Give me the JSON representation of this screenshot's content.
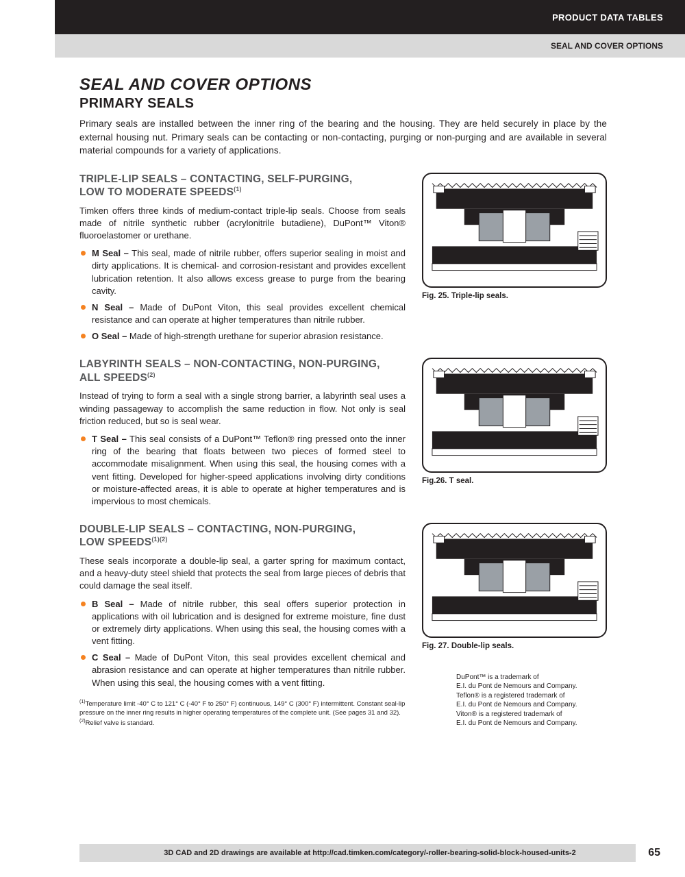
{
  "header": {
    "black": "PRODUCT DATA TABLES",
    "grey": "SEAL AND COVER OPTIONS"
  },
  "title": "SEAL AND COVER OPTIONS",
  "subtitle": "PRIMARY SEALS",
  "intro": "Primary seals are installed between the inner ring of the bearing and the housing. They are held securely in place by the external housing nut. Primary seals can be contacting or non-contacting, purging or non-purging and are available in several material compounds for a variety of applications.",
  "sections": [
    {
      "heading_l1": "TRIPLE-LIP SEALS – CONTACTING, SELF-PURGING,",
      "heading_l2": "LOW TO MODERATE SPEEDS",
      "heading_sup": "(1)",
      "body": "Timken offers three kinds of medium-contact triple-lip seals. Choose from seals made of nitrile synthetic rubber (acrylonitrile butadiene), DuPont™ Viton® fluoroelastomer or urethane.",
      "bullets": [
        {
          "b": "M Seal –",
          "t": " This seal, made of nitrile rubber, offers superior sealing in moist and dirty applications. It is chemical- and corrosion-resistant and provides excellent lubrication retention. It also allows excess grease to purge from the bearing cavity."
        },
        {
          "b": "N Seal –",
          "t": " Made of DuPont Viton, this seal provides excellent chemical resistance and can operate at higher temperatures than nitrile rubber."
        },
        {
          "b": "O Seal –",
          "t": " Made of high-strength urethane for superior abrasion resistance."
        }
      ],
      "fig_caption": "Fig. 25. Triple-lip seals."
    },
    {
      "heading_l1": "LABYRINTH SEALS – NON-CONTACTING, NON-PURGING,",
      "heading_l2": "ALL SPEEDS",
      "heading_sup": "(2)",
      "body": "Instead of trying to form a seal with a single strong barrier, a labyrinth seal uses a winding passageway to accomplish the same reduction in flow. Not only is seal friction reduced, but so is seal wear.",
      "bullets": [
        {
          "b": "T Seal –",
          "t": " This seal consists of a DuPont™ Teflon® ring pressed onto the inner ring of the bearing that floats between two pieces of formed steel to accommodate misalignment. When using this seal, the housing comes with a vent fitting. Developed for higher-speed applications involving dirty conditions or moisture-affected areas, it is able to operate at higher temperatures and is impervious to most chemicals."
        }
      ],
      "fig_caption": "Fig.26. T seal."
    },
    {
      "heading_l1": "DOUBLE-LIP SEALS – CONTACTING, NON-PURGING,",
      "heading_l2": "LOW SPEEDS",
      "heading_sup": "(1)(2)",
      "body": "These seals incorporate a double-lip seal, a garter spring for maximum contact, and a heavy-duty steel shield that protects the seal from large pieces of debris that could damage the seal itself.",
      "bullets": [
        {
          "b": "B Seal –",
          "t": " Made of nitrile rubber, this seal offers superior protection in applications with oil lubrication and is designed for extreme moisture, fine dust or extremely dirty applications. When using this seal, the housing comes with a vent fitting."
        },
        {
          "b": "C Seal –",
          "t": " Made of DuPont Viton, this seal provides excellent chemical and abrasion resistance and can operate at higher temperatures than nitrile rubber. When using this seal, the housing comes with a vent fitting."
        }
      ],
      "fig_caption": "Fig. 27. Double-lip seals."
    }
  ],
  "footnotes": [
    {
      "sup": "(1)",
      "text": "Temperature limit -40° C to 121° C (-40° F to 250° F) continuous, 149° C (300° F) intermittent. Constant seal-lip pressure on the inner ring results in higher operating temperatures of the complete unit. (See pages 31 and 32)."
    },
    {
      "sup": "(2)",
      "text": "Relief valve is standard."
    }
  ],
  "trademark": "DuPont™ is a trademark of\nE.I. du Pont de Nemours and Company.\nTeflon® is a registered trademark of\nE.I. du Pont de Nemours and Company.\nViton® is a registered trademark of\nE.I. du Pont de Nemours and Company.",
  "footer": "3D CAD and 2D drawings are available at http://cad.timken.com/category/-roller-bearing-solid-block-housed-units-2",
  "page_number": "65",
  "colors": {
    "bullet": "#f58220",
    "heading_grey": "#58595b",
    "text": "#231f20",
    "header_grey_bg": "#d9d9d9"
  }
}
